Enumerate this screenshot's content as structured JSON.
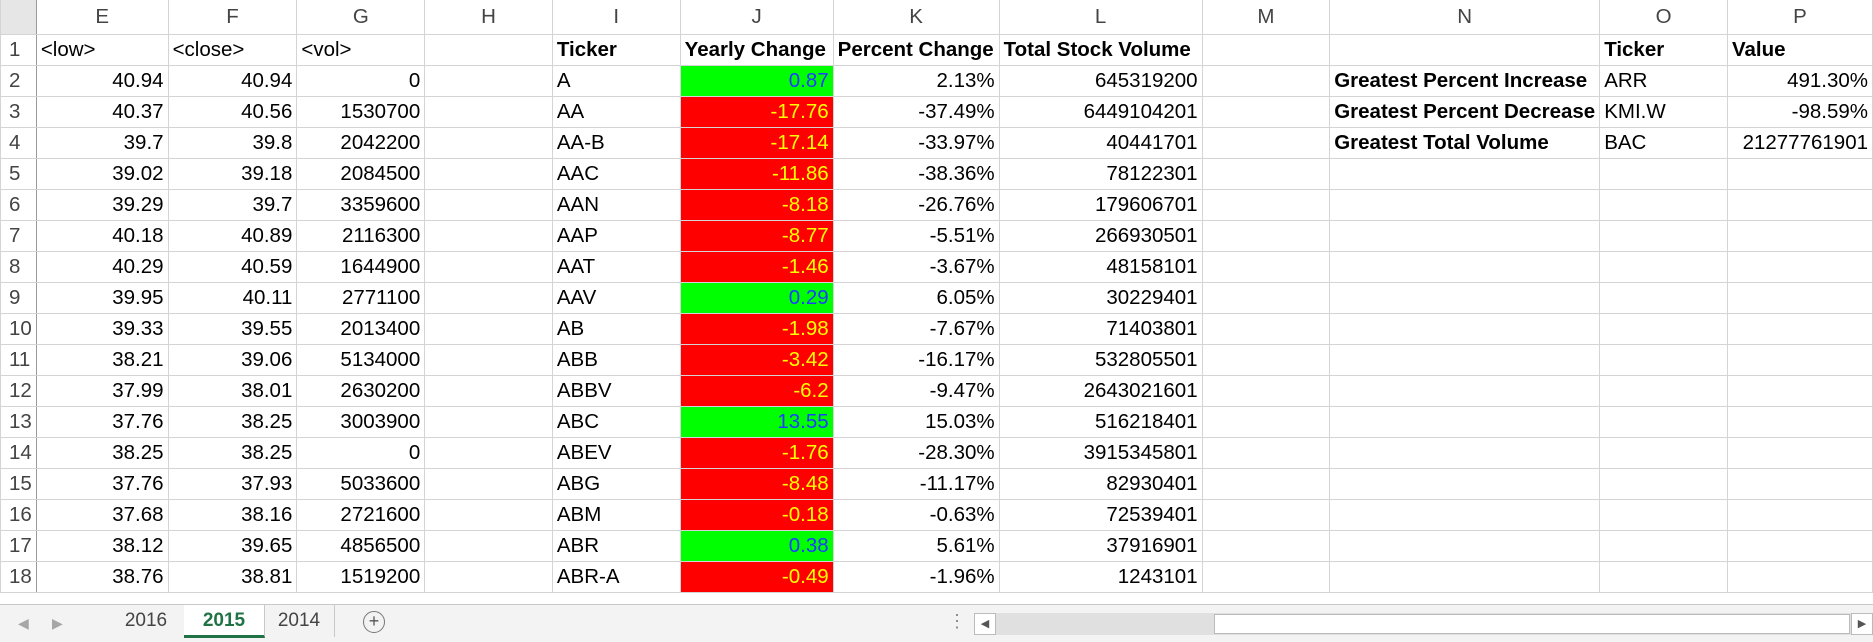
{
  "columns": [
    "E",
    "F",
    "G",
    "H",
    "I",
    "J",
    "K",
    "L",
    "M",
    "N",
    "O",
    "P"
  ],
  "rows": [
    {
      "num": "1",
      "E": "<low>",
      "F": "<close>",
      "G": "<vol>",
      "I": "Ticker",
      "J": "Yearly Change",
      "K": "Percent Change",
      "L": "Total Stock Volume",
      "O": "Ticker",
      "P": "Value"
    },
    {
      "num": "2",
      "E": "40.94",
      "F": "40.94",
      "G": "0",
      "I": "A",
      "J": "0.87",
      "jcolor": "pos",
      "K": "2.13%",
      "L": "645319200",
      "N": "Greatest Percent Increase",
      "O": "ARR",
      "P": "491.30%"
    },
    {
      "num": "3",
      "E": "40.37",
      "F": "40.56",
      "G": "1530700",
      "I": "AA",
      "J": "-17.76",
      "jcolor": "neg",
      "K": "-37.49%",
      "L": "6449104201",
      "N": "Greatest Percent Decrease",
      "O": "KMI.W",
      "P": "-98.59%"
    },
    {
      "num": "4",
      "E": "39.7",
      "F": "39.8",
      "G": "2042200",
      "I": "AA-B",
      "J": "-17.14",
      "jcolor": "neg",
      "K": "-33.97%",
      "L": "40441701",
      "N": "Greatest Total Volume",
      "O": "BAC",
      "P": "21277761901"
    },
    {
      "num": "5",
      "E": "39.02",
      "F": "39.18",
      "G": "2084500",
      "I": "AAC",
      "J": "-11.86",
      "jcolor": "neg",
      "K": "-38.36%",
      "L": "78122301"
    },
    {
      "num": "6",
      "E": "39.29",
      "F": "39.7",
      "G": "3359600",
      "I": "AAN",
      "J": "-8.18",
      "jcolor": "neg",
      "K": "-26.76%",
      "L": "179606701"
    },
    {
      "num": "7",
      "E": "40.18",
      "F": "40.89",
      "G": "2116300",
      "I": "AAP",
      "J": "-8.77",
      "jcolor": "neg",
      "K": "-5.51%",
      "L": "266930501"
    },
    {
      "num": "8",
      "E": "40.29",
      "F": "40.59",
      "G": "1644900",
      "I": "AAT",
      "J": "-1.46",
      "jcolor": "neg",
      "K": "-3.67%",
      "L": "48158101"
    },
    {
      "num": "9",
      "E": "39.95",
      "F": "40.11",
      "G": "2771100",
      "I": "AAV",
      "J": "0.29",
      "jcolor": "pos",
      "K": "6.05%",
      "L": "30229401"
    },
    {
      "num": "10",
      "E": "39.33",
      "F": "39.55",
      "G": "2013400",
      "I": "AB",
      "J": "-1.98",
      "jcolor": "neg",
      "K": "-7.67%",
      "L": "71403801"
    },
    {
      "num": "11",
      "E": "38.21",
      "F": "39.06",
      "G": "5134000",
      "I": "ABB",
      "J": "-3.42",
      "jcolor": "neg",
      "K": "-16.17%",
      "L": "532805501"
    },
    {
      "num": "12",
      "E": "37.99",
      "F": "38.01",
      "G": "2630200",
      "I": "ABBV",
      "J": "-6.2",
      "jcolor": "neg",
      "K": "-9.47%",
      "L": "2643021601"
    },
    {
      "num": "13",
      "E": "37.76",
      "F": "38.25",
      "G": "3003900",
      "I": "ABC",
      "J": "13.55",
      "jcolor": "pos",
      "K": "15.03%",
      "L": "516218401"
    },
    {
      "num": "14",
      "E": "38.25",
      "F": "38.25",
      "G": "0",
      "I": "ABEV",
      "J": "-1.76",
      "jcolor": "neg",
      "K": "-28.30%",
      "L": "3915345801"
    },
    {
      "num": "15",
      "E": "37.76",
      "F": "37.93",
      "G": "5033600",
      "I": "ABG",
      "J": "-8.48",
      "jcolor": "neg",
      "K": "-11.17%",
      "L": "82930401"
    },
    {
      "num": "16",
      "E": "37.68",
      "F": "38.16",
      "G": "2721600",
      "I": "ABM",
      "J": "-0.18",
      "jcolor": "neg",
      "K": "-0.63%",
      "L": "72539401"
    },
    {
      "num": "17",
      "E": "38.12",
      "F": "39.65",
      "G": "4856500",
      "I": "ABR",
      "J": "0.38",
      "jcolor": "pos",
      "K": "5.61%",
      "L": "37916901"
    },
    {
      "num": "18",
      "E": "38.76",
      "F": "38.81",
      "G": "1519200",
      "I": "ABR-A",
      "J": "-0.49",
      "jcolor": "neg",
      "K": "-1.96%",
      "L": "1243101"
    }
  ],
  "sheets": [
    {
      "label": "2016",
      "active": false
    },
    {
      "label": "2015",
      "active": true
    },
    {
      "label": "2014",
      "active": false
    }
  ],
  "icons": {
    "add_sheet": "+",
    "more_options": "⋮",
    "scroll_left": "◀",
    "scroll_right": "▶",
    "nav_prev": "◀",
    "nav_next": "▶"
  },
  "colors": {
    "positive_fill": "#00ff00",
    "positive_text": "#1f3cff",
    "negative_fill": "#ff0000",
    "negative_text": "#ffff00",
    "active_tab": "#217346"
  }
}
